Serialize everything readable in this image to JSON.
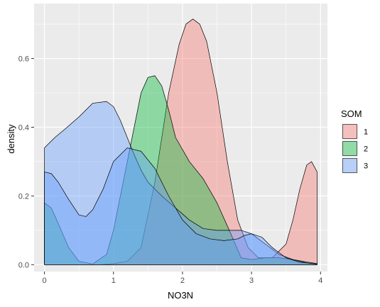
{
  "chart_data": {
    "type": "area",
    "xlabel": "NO3N",
    "ylabel": "density",
    "xlim": [
      -0.15,
      4.1
    ],
    "ylim": [
      -0.02,
      0.76
    ],
    "x_ticks": [
      0,
      1,
      2,
      3,
      4
    ],
    "y_ticks": [
      0.0,
      0.2,
      0.4,
      0.6
    ],
    "y_tick_labels": [
      "0.0",
      "0.2",
      "0.4",
      "0.6"
    ],
    "grid": true,
    "legend_position": "right",
    "legend_title": "SOM",
    "series": [
      {
        "name": "1",
        "color": "#F8766D",
        "x": [
          0,
          0.2,
          0.4,
          0.6,
          0.8,
          1.0,
          1.2,
          1.4,
          1.6,
          1.8,
          1.95,
          2.05,
          2.15,
          2.25,
          2.35,
          2.5,
          2.65,
          2.8,
          2.95,
          3.1,
          3.3,
          3.5,
          3.6,
          3.7,
          3.8,
          3.87,
          3.95
        ],
        "values": [
          0,
          0,
          0,
          0,
          0,
          0.003,
          0.01,
          0.05,
          0.24,
          0.5,
          0.64,
          0.7,
          0.715,
          0.7,
          0.65,
          0.5,
          0.3,
          0.13,
          0.05,
          0.02,
          0.02,
          0.06,
          0.13,
          0.22,
          0.29,
          0.3,
          0.27
        ]
      },
      {
        "name": "2",
        "color": "#00BA38",
        "x": [
          0,
          0.1,
          0.2,
          0.35,
          0.5,
          0.7,
          0.9,
          1.0,
          1.2,
          1.4,
          1.5,
          1.6,
          1.7,
          1.8,
          1.9,
          2.1,
          2.3,
          2.5,
          2.7,
          2.85,
          3.0,
          3.2,
          3.4,
          3.6,
          3.8,
          3.95
        ],
        "values": [
          0.18,
          0.165,
          0.12,
          0.05,
          0.01,
          0.002,
          0.03,
          0.1,
          0.3,
          0.5,
          0.545,
          0.55,
          0.52,
          0.45,
          0.37,
          0.3,
          0.25,
          0.18,
          0.09,
          0.02,
          0.015,
          0.02,
          0.02,
          0.015,
          0.008,
          0.003
        ]
      },
      {
        "name": "3",
        "color": "#619CFF",
        "x": [
          0,
          0.15,
          0.3,
          0.5,
          0.7,
          0.9,
          1.0,
          1.1,
          1.2,
          1.3,
          1.4,
          1.5,
          1.7,
          1.9,
          2.1,
          2.3,
          2.5,
          2.7,
          2.85,
          3.0,
          3.2,
          3.4,
          3.6,
          3.8,
          3.95
        ],
        "values": [
          0.34,
          0.37,
          0.395,
          0.43,
          0.47,
          0.475,
          0.46,
          0.42,
          0.37,
          0.32,
          0.275,
          0.24,
          0.2,
          0.165,
          0.13,
          0.105,
          0.1,
          0.1,
          0.1,
          0.09,
          0.06,
          0.03,
          0.015,
          0.005,
          0.002
        ]
      },
      {
        "name": "3",
        "color": "#619CFF",
        "x": [
          0,
          0.1,
          0.2,
          0.35,
          0.5,
          0.6,
          0.7,
          0.85,
          1.0,
          1.2,
          1.4,
          1.6,
          1.8,
          2.0,
          2.2,
          2.4,
          2.6,
          2.8,
          2.9,
          3.0,
          3.15,
          3.3,
          3.5,
          3.7,
          3.95
        ],
        "values": [
          0.27,
          0.265,
          0.24,
          0.19,
          0.145,
          0.14,
          0.16,
          0.22,
          0.3,
          0.34,
          0.33,
          0.28,
          0.2,
          0.13,
          0.09,
          0.075,
          0.07,
          0.075,
          0.085,
          0.09,
          0.08,
          0.05,
          0.02,
          0.007,
          0.002
        ]
      }
    ],
    "legend_entries": [
      {
        "label": "1",
        "color": "#F8766D"
      },
      {
        "label": "2",
        "color": "#00BA38"
      },
      {
        "label": "3",
        "color": "#619CFF"
      }
    ],
    "panel_background": "#EBEBEB",
    "grid_color": "#FFFFFF"
  }
}
